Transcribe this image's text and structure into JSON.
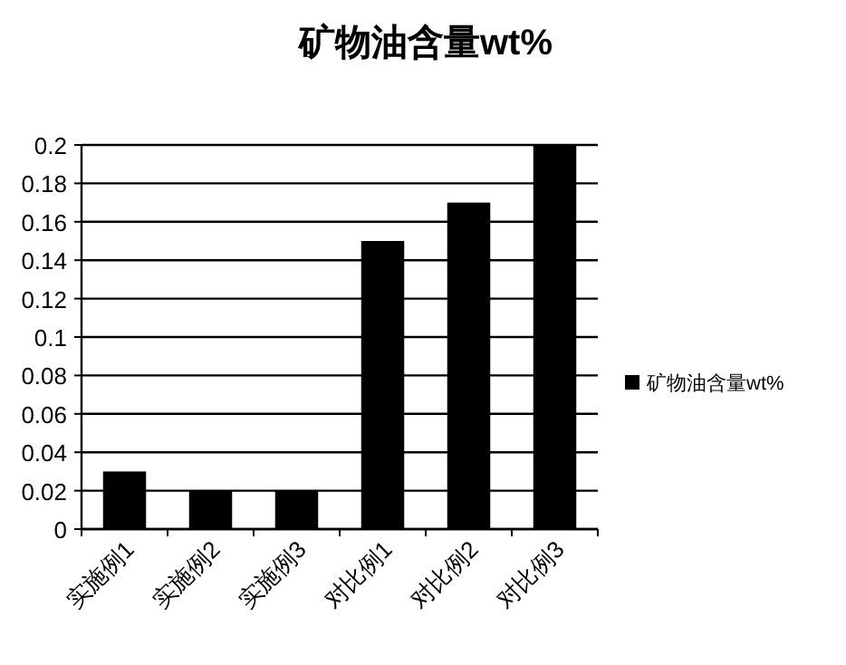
{
  "chart_data": {
    "type": "bar",
    "title": "矿物油含量wt%",
    "categories": [
      "实施例1",
      "实施例2",
      "实施例3",
      "对比例1",
      "对比例2",
      "对比例3"
    ],
    "series": [
      {
        "name": "矿物油含量wt%",
        "color": "#000000",
        "values": [
          0.03,
          0.02,
          0.02,
          0.15,
          0.17,
          0.2
        ]
      }
    ],
    "ylim": [
      0,
      0.2
    ],
    "yticks": [
      0,
      0.02,
      0.04,
      0.06,
      0.08,
      0.1,
      0.12,
      0.14,
      0.16,
      0.18,
      0.2
    ],
    "grid": "y",
    "legend": "right"
  }
}
